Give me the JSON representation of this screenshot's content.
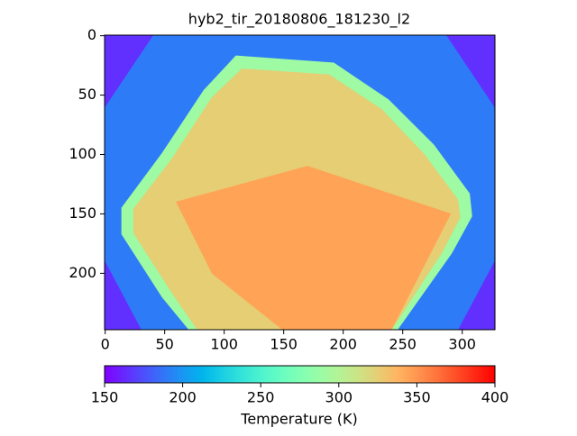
{
  "chart_data": {
    "type": "image",
    "title": "hyb2_tir_20180806_181230_l2",
    "xlim": [
      -0.5,
      327.5
    ],
    "ylim": [
      247.5,
      -0.5
    ],
    "xticks": [
      0,
      50,
      100,
      150,
      200,
      250,
      300
    ],
    "yticks": [
      0,
      50,
      100,
      150,
      200
    ],
    "colormap": "rainbow",
    "clim": [
      150,
      400
    ],
    "colorbar": {
      "label": "Temperature (K)",
      "ticks": [
        150,
        200,
        250,
        300,
        350,
        400
      ]
    },
    "regions": [
      {
        "x": [
          -0.5,
          327.5,
          327.5,
          -0.5
        ],
        "y": [
          -0.5,
          -0.5,
          247.5,
          247.5
        ],
        "value": 190
      },
      {
        "x": [
          -0.5,
          40,
          -0.5
        ],
        "y": [
          -0.5,
          -0.5,
          60
        ],
        "value": 165
      },
      {
        "x": [
          287,
          327.5,
          327.5
        ],
        "y": [
          -0.5,
          -0.5,
          60
        ],
        "value": 165
      },
      {
        "x": [
          -0.5,
          30,
          -0.5
        ],
        "y": [
          247.5,
          247.5,
          190
        ],
        "value": 165
      },
      {
        "x": [
          297,
          327.5,
          327.5
        ],
        "y": [
          247.5,
          247.5,
          190
        ],
        "value": 165
      },
      {
        "x": [
          110,
          192,
          238,
          276,
          306,
          308,
          291,
          245,
          71,
          48,
          14,
          14,
          48,
          83
        ],
        "y": [
          17,
          23,
          54,
          92,
          133,
          152,
          183,
          248,
          248,
          220,
          167,
          145,
          99,
          46
        ],
        "value": 290
      },
      {
        "x": [
          115,
          188,
          232,
          268,
          296,
          298,
          283,
          240,
          78,
          56,
          24,
          24,
          56,
          90
        ],
        "y": [
          28,
          33,
          62,
          100,
          138,
          153,
          182,
          248,
          248,
          216,
          166,
          146,
          104,
          52
        ],
        "value": 325
      },
      {
        "x": [
          60,
          170,
          290,
          240,
          150,
          90
        ],
        "y": [
          140,
          110,
          150,
          248,
          248,
          200
        ],
        "value": 345
      }
    ]
  }
}
